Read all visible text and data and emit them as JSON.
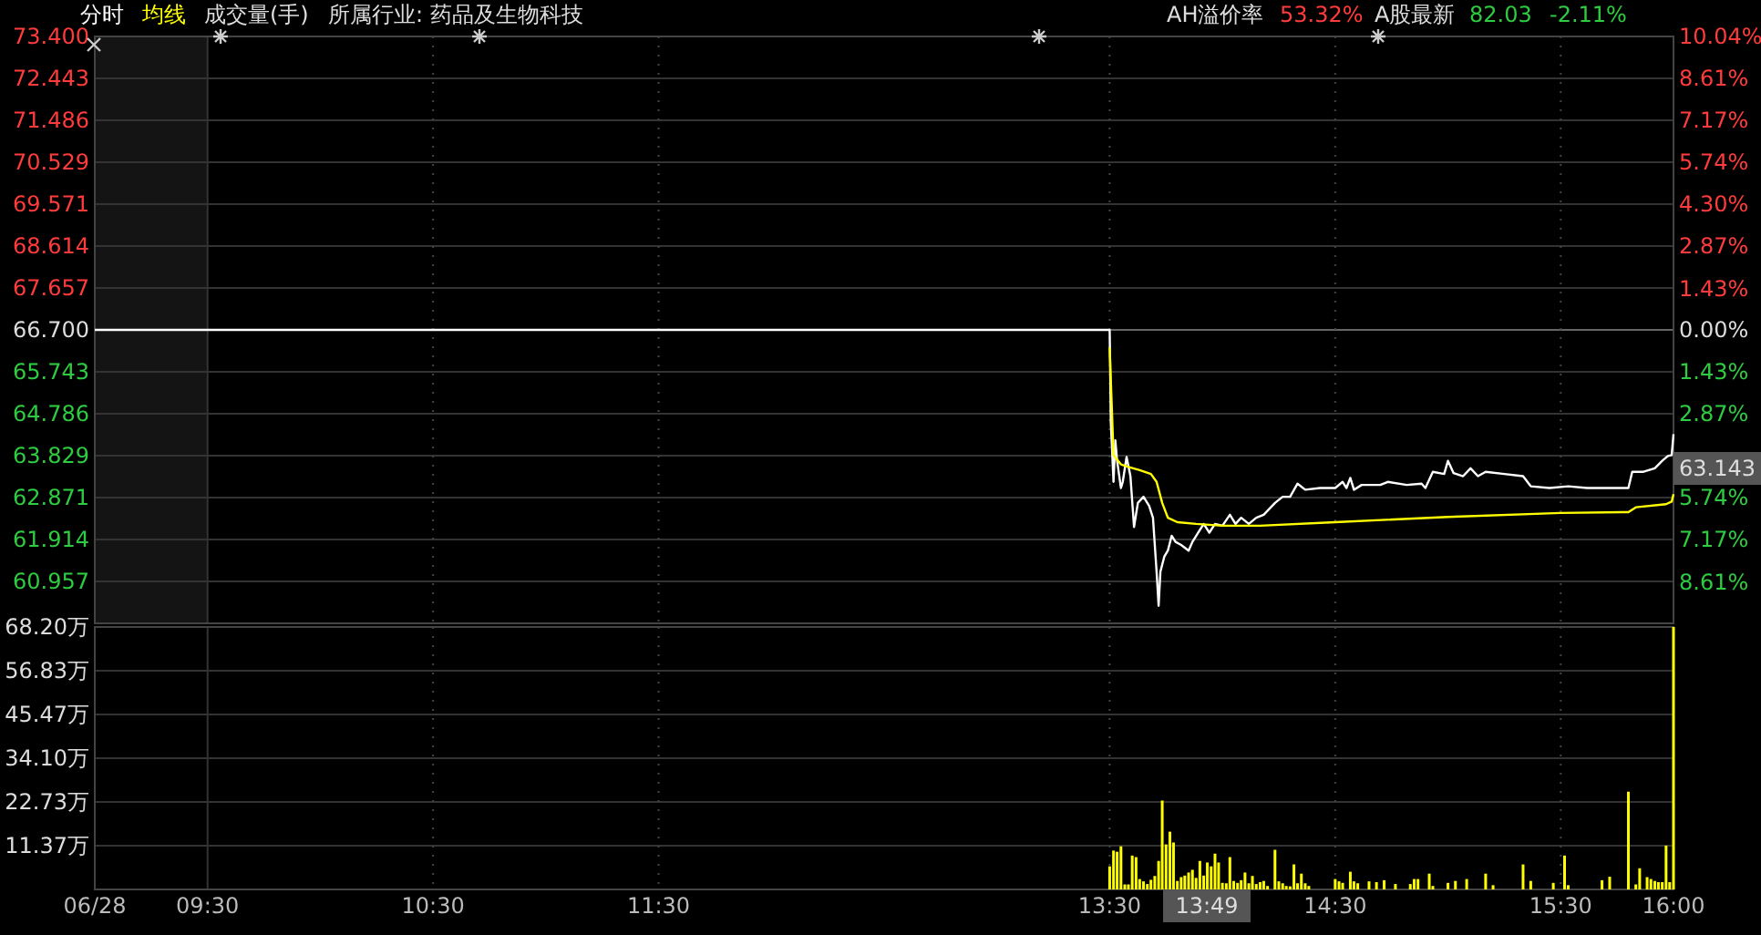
{
  "chart_data": [
    {
      "type": "line",
      "title": "成交量(手)",
      "subtitle": "所属行业: 药品及生物科技",
      "legend": "top left",
      "grid": true,
      "tick_labels": "y",
      "xlim": [
        9,
        16
      ],
      "xticks": [
        9,
        9.5,
        10.5,
        11.5,
        13.5,
        14.5,
        15.5,
        16
      ],
      "ylim": [
        60.0,
        73.4
      ],
      "yticks": [
        {
          "value": 73.4,
          "label": "73.400"
        },
        72.443,
        71.486,
        70.529,
        69.571,
        68.614,
        67.657,
        {
          "value": 66.7,
          "label": "66.700"
        },
        65.743,
        64.786,
        63.829,
        62.871,
        61.914,
        60.957
      ],
      "y2lim": [
        -10.04,
        10.04
      ],
      "y2ticks": [
        {
          "value": 10.04,
          "label": "10.04%"
        },
        {
          "value": 8.61,
          "label": "8.61%"
        },
        {
          "value": 7.17,
          "label": "7.17%"
        },
        {
          "value": 5.74,
          "label": "5.74%"
        },
        {
          "value": 4.3,
          "label": "4.30%"
        },
        {
          "value": 2.87,
          "label": "2.87%"
        },
        {
          "value": 1.43,
          "label": "1.43%"
        },
        {
          "value": 0,
          "label": "0.00%"
        },
        {
          "value": -1.43,
          "label": "1.43%"
        },
        {
          "value": -2.87,
          "label": "2.87%"
        },
        {
          "value": -5.74,
          "label": "5.74%"
        },
        {
          "value": -7.17,
          "label": "7.17%"
        },
        {
          "value": -8.61,
          "label": "8.61%"
        }
      ],
      "bands": [
        {
          "axis": "x",
          "from": 9,
          "to": 9.5,
          "color": "#141414"
        }
      ],
      "annotations": [
        "AH溢价率",
        "53.32%",
        "A股最新",
        "82.03",
        "-2.11%",
        "63.143"
      ],
      "series": [
        {
          "name": "分时",
          "color": "#ffffff",
          "x": [
            9,
            13.5,
            13.505,
            13.517,
            13.525,
            13.533,
            13.55,
            13.558,
            13.575,
            13.592,
            13.608,
            13.625,
            13.65,
            13.675,
            13.692,
            13.708,
            13.717,
            13.725,
            13.742,
            13.758,
            13.775,
            13.792,
            13.817,
            13.85,
            13.867,
            13.892,
            13.917,
            13.942,
            13.967,
            14.0,
            14.033,
            14.058,
            14.083,
            14.117,
            14.15,
            14.183,
            14.233,
            14.267,
            14.3,
            14.333,
            14.367,
            14.433,
            14.5,
            14.533,
            14.55,
            14.567,
            14.583,
            14.617,
            14.7,
            14.733,
            14.817,
            14.883,
            14.9,
            14.933,
            14.983,
            15.0,
            15.025,
            15.067,
            15.1,
            15.133,
            15.167,
            15.25,
            15.333,
            15.367,
            15.45,
            15.533,
            15.617,
            15.7,
            15.8,
            15.817,
            15.867,
            15.917,
            15.95,
            15.975,
            15.992,
            16
          ],
          "values": [
            66.7,
            66.7,
            64.59,
            63.23,
            64.18,
            63.71,
            63.09,
            63.23,
            63.8,
            63.36,
            62.2,
            62.75,
            62.89,
            62.68,
            62.41,
            61.18,
            60.4,
            61.18,
            61.52,
            61.66,
            62.0,
            61.86,
            61.79,
            61.66,
            61.86,
            62.07,
            62.27,
            62.07,
            62.27,
            62.23,
            62.48,
            62.27,
            62.41,
            62.27,
            62.41,
            62.48,
            62.75,
            62.89,
            62.89,
            63.19,
            63.05,
            63.09,
            63.09,
            63.23,
            63.09,
            63.32,
            63.05,
            63.16,
            63.16,
            63.23,
            63.16,
            63.19,
            63.09,
            63.46,
            63.41,
            63.71,
            63.43,
            63.36,
            63.54,
            63.36,
            63.46,
            63.41,
            63.36,
            63.13,
            63.09,
            63.13,
            63.09,
            63.09,
            63.09,
            63.46,
            63.46,
            63.54,
            63.71,
            63.82,
            63.84,
            64.32
          ]
        },
        {
          "name": "均线",
          "color": "#ffff00",
          "x": [
            13.5,
            13.517,
            13.55,
            13.583,
            13.633,
            13.683,
            13.708,
            13.733,
            13.758,
            13.8,
            13.883,
            14.0,
            14.167,
            14.5,
            15.0,
            15.5,
            15.8,
            15.833,
            15.967,
            15.992,
            16
          ],
          "values": [
            66.3,
            63.84,
            63.63,
            63.57,
            63.5,
            63.41,
            63.23,
            62.75,
            62.41,
            62.31,
            62.27,
            62.23,
            62.23,
            62.31,
            62.43,
            62.52,
            62.54,
            62.65,
            62.72,
            62.78,
            62.95
          ]
        }
      ]
    },
    {
      "type": "bar",
      "grid": true,
      "xlim": [
        9,
        16
      ],
      "xticks": [
        {
          "value": 9,
          "label": "06/28"
        },
        {
          "value": 9.5,
          "label": "09:30"
        },
        {
          "value": 10.5,
          "label": "10:30"
        },
        {
          "value": 11.5,
          "label": "11:30"
        },
        {
          "value": 13.5,
          "label": "13:30"
        },
        {
          "value": 14.5,
          "label": "14:30"
        },
        {
          "value": 15.5,
          "label": "15:30"
        },
        {
          "value": 16,
          "label": "16:00"
        }
      ],
      "ylim": [
        0,
        68.2
      ],
      "yticks": [
        {
          "value": 11.37,
          "label": "11.37万"
        },
        {
          "value": 22.73,
          "label": "22.73万"
        },
        {
          "value": 34.1,
          "label": "34.10万"
        },
        {
          "value": 45.47,
          "label": "45.47万"
        },
        {
          "value": 56.83,
          "label": "56.83万"
        },
        {
          "value": 68.2,
          "label": "68.20万"
        }
      ],
      "annotations": [
        "13:49"
      ],
      "x": [
        13.5,
        13.517,
        13.533,
        13.55,
        13.567,
        13.583,
        13.6,
        13.617,
        13.633,
        13.65,
        13.667,
        13.683,
        13.7,
        13.717,
        13.733,
        13.75,
        13.767,
        13.783,
        13.8,
        13.817,
        13.833,
        13.85,
        13.867,
        13.883,
        13.9,
        13.917,
        13.933,
        13.95,
        13.967,
        13.983,
        14,
        14.017,
        14.033,
        14.05,
        14.067,
        14.083,
        14.1,
        14.117,
        14.133,
        14.15,
        14.167,
        14.183,
        14.2,
        14.233,
        14.25,
        14.267,
        14.283,
        14.3,
        14.317,
        14.333,
        14.35,
        14.367,
        14.383,
        14.5,
        14.517,
        14.533,
        14.567,
        14.583,
        14.6,
        14.65,
        14.683,
        14.717,
        14.767,
        14.833,
        14.85,
        14.867,
        14.917,
        14.933,
        15,
        15.033,
        15.083,
        15.167,
        15.2,
        15.333,
        15.367,
        15.467,
        15.517,
        15.533,
        15.683,
        15.717,
        15.8,
        15.833,
        15.85,
        15.883,
        15.9,
        15.917,
        15.933,
        15.95,
        15.967,
        15.983,
        16
      ],
      "series": [
        {
          "color": "#ffff00",
          "values": [
            6.0,
            10.1,
            9.8,
            11.2,
            1.3,
            1.3,
            8.8,
            8.4,
            2.7,
            2.1,
            1.4,
            2.5,
            3.5,
            7.4,
            23.1,
            11.7,
            15.0,
            12.2,
            2.2,
            3.2,
            3.6,
            4.4,
            5.1,
            3.0,
            7.4,
            3.6,
            7.0,
            6.0,
            9.3,
            7.0,
            1.7,
            1.6,
            8.4,
            2.2,
            1.7,
            2.4,
            4.4,
            1.6,
            3.5,
            1.4,
            1.9,
            2.2,
            0.9,
            10.3,
            2.1,
            1.6,
            0.9,
            0.8,
            6.5,
            1.6,
            4.1,
            1.6,
            0.9,
            2.7,
            2.1,
            1.7,
            4.6,
            2.1,
            1.6,
            2.1,
            1.9,
            2.4,
            1.4,
            1.4,
            2.7,
            2.7,
            4.1,
            0.9,
            1.7,
            2.2,
            2.7,
            4.1,
            1.1,
            6.5,
            2.2,
            1.7,
            8.8,
            1.1,
            2.4,
            3.3,
            25.4,
            1.3,
            5.5,
            3.2,
            2.7,
            2.2,
            1.9,
            1.9,
            11.4,
            1.9,
            68.2
          ]
        }
      ]
    }
  ]
}
